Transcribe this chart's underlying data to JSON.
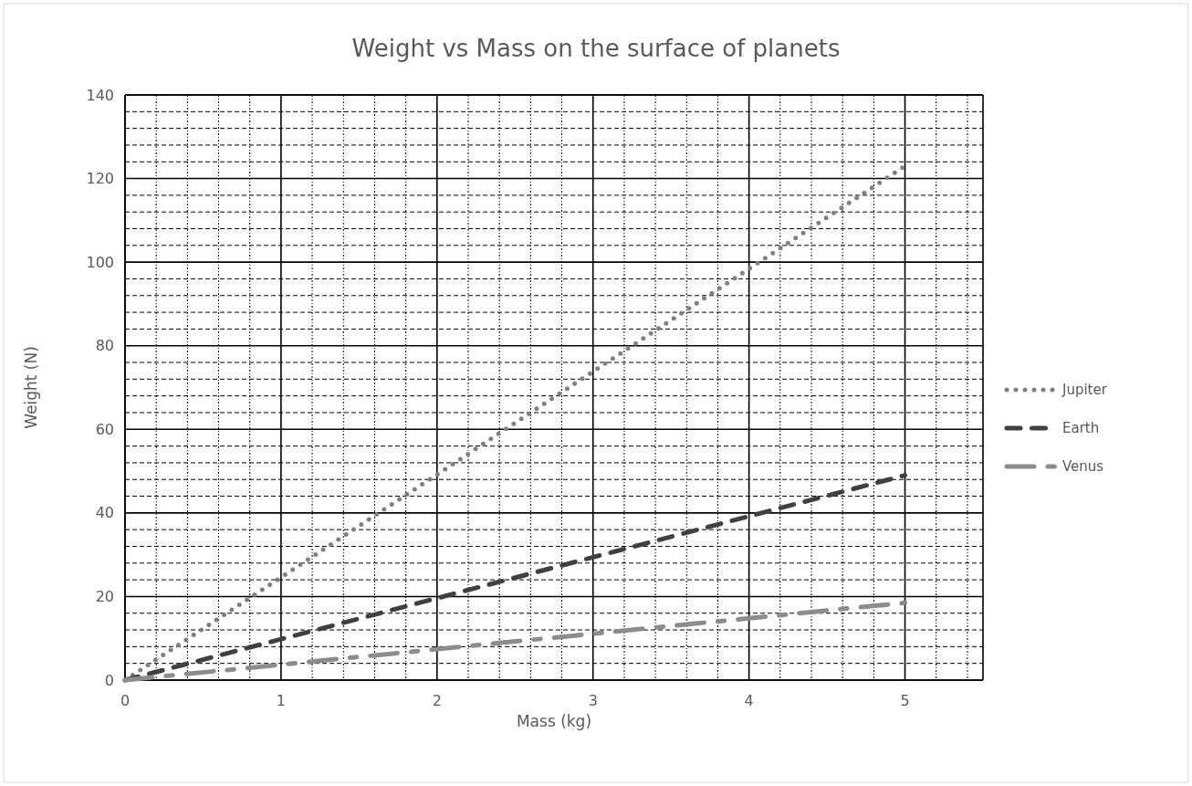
{
  "chart_data": {
    "type": "line",
    "title": "Weight vs Mass on the surface of planets",
    "xlabel": "Mass (kg)",
    "ylabel": "Weight (N)",
    "x": [
      0,
      1,
      2,
      3,
      4,
      5
    ],
    "series": [
      {
        "name": "Jupiter",
        "color": "#808080",
        "line_style": "dotted",
        "values": [
          0,
          24.6,
          49.2,
          73.8,
          98.4,
          123
        ]
      },
      {
        "name": "Earth",
        "color": "#404040",
        "line_style": "dashed",
        "values": [
          0,
          9.8,
          19.6,
          29.4,
          39.2,
          49
        ]
      },
      {
        "name": "Venus",
        "color": "#8c8c8c",
        "line_style": "longdash",
        "values": [
          0,
          3.7,
          7.4,
          11.1,
          14.8,
          18.5
        ]
      }
    ],
    "xlim": [
      0,
      5.5
    ],
    "xticks": [
      0,
      {
        "value": 0.2,
        "label": null
      },
      {
        "value": 0.4,
        "label": null
      },
      {
        "value": 0.6,
        "label": null
      },
      {
        "value": 0.8,
        "label": null
      },
      1,
      {
        "value": 1.2,
        "label": null
      },
      {
        "value": 1.4,
        "label": null
      },
      {
        "value": 1.6,
        "label": null
      },
      {
        "value": 1.8,
        "label": null
      },
      2,
      {
        "value": 2.2,
        "label": null
      },
      {
        "value": 2.4,
        "label": null
      },
      {
        "value": 2.6,
        "label": null
      },
      {
        "value": 2.8,
        "label": null
      },
      3,
      {
        "value": 3.2,
        "label": null
      },
      {
        "value": 3.4,
        "label": null
      },
      {
        "value": 3.6,
        "label": null
      },
      {
        "value": 3.8,
        "label": null
      },
      4,
      {
        "value": 4.2,
        "label": null
      },
      {
        "value": 4.4,
        "label": null
      },
      {
        "value": 4.6,
        "label": null
      },
      {
        "value": 4.8,
        "label": null
      },
      5,
      {
        "value": 5.2,
        "label": null
      },
      {
        "value": 5.4,
        "label": null
      }
    ],
    "ylim": [
      0,
      140
    ],
    "yticks": [
      0,
      {
        "value": 4,
        "label": null
      },
      {
        "value": 8,
        "label": null
      },
      {
        "value": 12,
        "label": null
      },
      {
        "value": 16,
        "label": null
      },
      20,
      {
        "value": 24,
        "label": null
      },
      {
        "value": 28,
        "label": null
      },
      {
        "value": 32,
        "label": null
      },
      {
        "value": 36,
        "label": null
      },
      40,
      {
        "value": 44,
        "label": null
      },
      {
        "value": 48,
        "label": null
      },
      {
        "value": 52,
        "label": null
      },
      {
        "value": 56,
        "label": null
      },
      60,
      {
        "value": 64,
        "label": null
      },
      {
        "value": 68,
        "label": null
      },
      {
        "value": 72,
        "label": null
      },
      {
        "value": 76,
        "label": null
      },
      80,
      {
        "value": 84,
        "label": null
      },
      {
        "value": 88,
        "label": null
      },
      {
        "value": 92,
        "label": null
      },
      {
        "value": 96,
        "label": null
      },
      100,
      {
        "value": 104,
        "label": null
      },
      {
        "value": 108,
        "label": null
      },
      {
        "value": 112,
        "label": null
      },
      {
        "value": 116,
        "label": null
      },
      120,
      {
        "value": 124,
        "label": null
      },
      {
        "value": 128,
        "label": null
      },
      {
        "value": 132,
        "label": null
      },
      {
        "value": 136,
        "label": null
      },
      140
    ],
    "grid": true,
    "legend": "right"
  }
}
